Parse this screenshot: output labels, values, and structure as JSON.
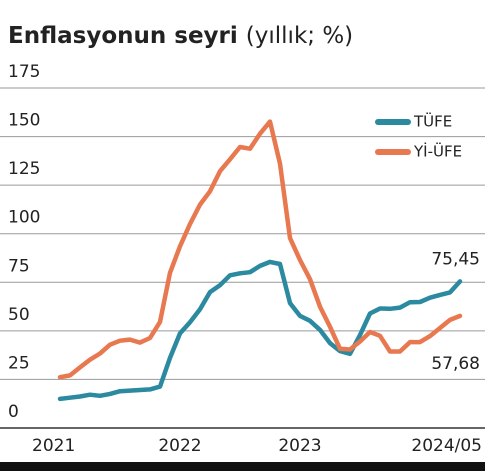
{
  "chart_data": {
    "type": "line",
    "title": "Enflasyonun seyri",
    "subtitle": "(yıllık; %)",
    "categories": [
      "2021",
      null,
      null,
      null,
      null,
      null,
      null,
      null,
      null,
      null,
      null,
      null,
      "2022",
      null,
      null,
      null,
      null,
      null,
      null,
      null,
      null,
      null,
      null,
      null,
      "2023",
      null,
      null,
      null,
      null,
      null,
      null,
      null,
      null,
      null,
      null,
      null,
      null,
      null,
      null,
      null,
      "2024/05"
    ],
    "series": [
      {
        "name": "TÜFE",
        "color": "#2b8a9f",
        "values": [
          14.97,
          15.61,
          16.19,
          17.14,
          16.59,
          17.53,
          18.95,
          19.25,
          19.58,
          19.89,
          21.31,
          36.08,
          48.69,
          54.44,
          61.14,
          69.97,
          73.5,
          78.62,
          79.6,
          80.21,
          83.45,
          85.51,
          84.39,
          64.27,
          57.68,
          55.18,
          50.51,
          43.68,
          39.59,
          38.21,
          47.83,
          58.94,
          61.53,
          61.36,
          61.98,
          64.77,
          64.86,
          67.07,
          68.5,
          69.8,
          75.45
        ],
        "value_labels": [
          null,
          null,
          null,
          null,
          null,
          null,
          null,
          null,
          null,
          null,
          null,
          null,
          null,
          null,
          null,
          null,
          null,
          null,
          null,
          null,
          null,
          null,
          null,
          null,
          null,
          null,
          null,
          null,
          null,
          null,
          null,
          null,
          null,
          null,
          null,
          null,
          null,
          null,
          null,
          null,
          "75,45"
        ]
      },
      {
        "name": "Yİ-ÜFE",
        "color": "#e8784f",
        "values": [
          26.16,
          27.09,
          31.2,
          35.17,
          38.33,
          42.89,
          44.92,
          45.52,
          43.96,
          46.31,
          54.62,
          79.89,
          93.53,
          105.01,
          114.97,
          121.82,
          132.16,
          138.31,
          144.61,
          143.75,
          151.5,
          157.69,
          136.02,
          97.72,
          86.46,
          76.61,
          62.45,
          52.11,
          40.76,
          40.42,
          44.5,
          49.41,
          47.44,
          39.39,
          39.35,
          44.22,
          44.2,
          47.29,
          51.47,
          55.66,
          57.68
        ],
        "value_labels": [
          null,
          null,
          null,
          null,
          null,
          null,
          null,
          null,
          null,
          null,
          null,
          null,
          null,
          null,
          null,
          null,
          null,
          null,
          null,
          null,
          null,
          null,
          null,
          null,
          null,
          null,
          null,
          null,
          null,
          null,
          null,
          null,
          null,
          null,
          null,
          null,
          null,
          null,
          null,
          null,
          "57,68"
        ]
      }
    ],
    "ylim": [
      0,
      175
    ],
    "yticks": [
      0,
      25,
      50,
      75,
      100,
      125,
      150,
      175
    ],
    "grid": true,
    "legend": "upper right"
  }
}
